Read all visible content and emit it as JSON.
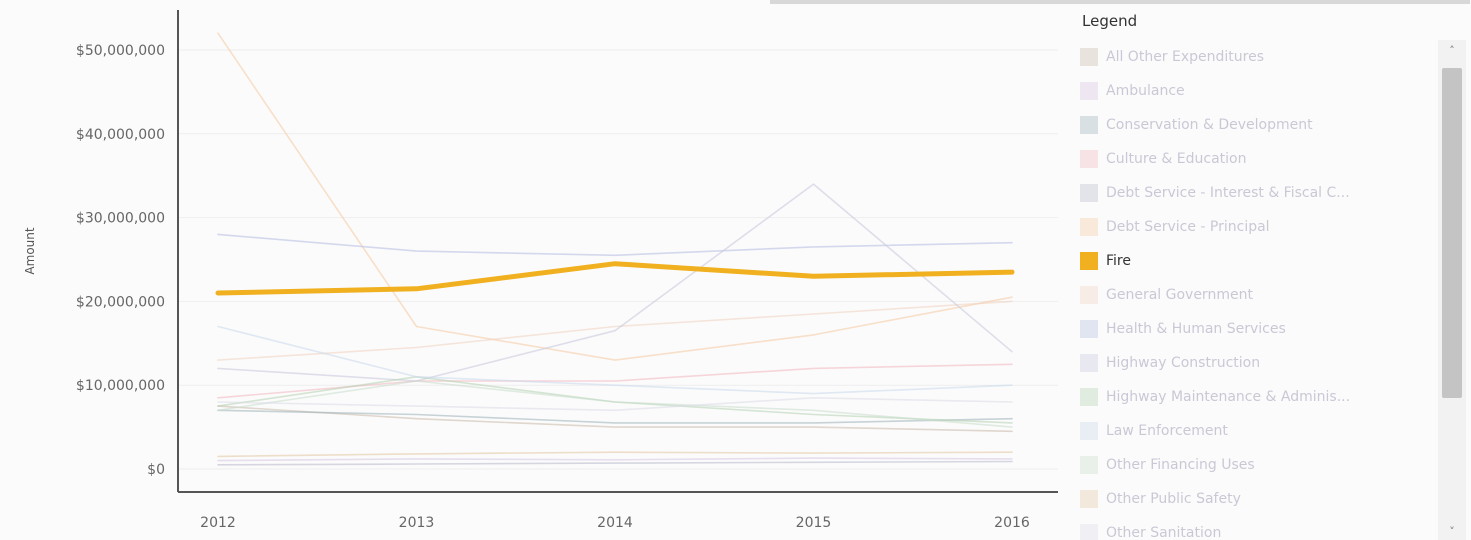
{
  "chart_data": {
    "type": "line",
    "title": "",
    "xlabel": "",
    "ylabel": "Amount",
    "x": [
      "2012",
      "2013",
      "2014",
      "2015",
      "2016"
    ],
    "ylim": [
      0,
      55000000
    ],
    "y_ticks": [
      {
        "value": 0,
        "label": "$0"
      },
      {
        "value": 10000000,
        "label": "$10,000,000"
      },
      {
        "value": 20000000,
        "label": "$20,000,000"
      },
      {
        "value": 30000000,
        "label": "$30,000,000"
      },
      {
        "value": 40000000,
        "label": "$40,000,000"
      },
      {
        "value": 50000000,
        "label": "$50,000,000"
      }
    ],
    "grid": true,
    "legend_title": "Legend",
    "legend_position": "right",
    "highlighted_series": "Fire",
    "series": [
      {
        "name": "All Other Expenditures",
        "color": "#c9b8a8",
        "values": [
          7500000,
          6000000,
          5000000,
          5000000,
          4500000
        ]
      },
      {
        "name": "Ambulance",
        "color": "#d6c4e2",
        "values": [
          1000000,
          1200000,
          1100000,
          1300000,
          1200000
        ]
      },
      {
        "name": "Conservation & Development",
        "color": "#9ab0b8",
        "values": [
          7000000,
          6500000,
          5500000,
          5500000,
          6000000
        ]
      },
      {
        "name": "Culture & Education",
        "color": "#f2b6c0",
        "values": [
          8500000,
          10500000,
          10500000,
          12000000,
          12500000
        ]
      },
      {
        "name": "Debt Service - Interest & Fiscal Charges",
        "color": "#b8b8cc",
        "values": [
          500000,
          600000,
          700000,
          800000,
          900000
        ]
      },
      {
        "name": "Debt Service - Principal",
        "color": "#f5c8a0",
        "values": [
          52000000,
          17000000,
          13000000,
          16000000,
          20500000
        ]
      },
      {
        "name": "Fire",
        "color": "#f0b020",
        "values": [
          21000000,
          21500000,
          24500000,
          23000000,
          23500000
        ]
      },
      {
        "name": "General Government",
        "color": "#f0d2c0",
        "values": [
          13000000,
          14500000,
          17000000,
          18500000,
          20000000
        ]
      },
      {
        "name": "Health & Human Services",
        "color": "#b2bce2",
        "values": [
          28000000,
          26000000,
          25500000,
          26500000,
          27000000
        ]
      },
      {
        "name": "Highway Construction",
        "color": "#c6c6dc",
        "values": [
          12000000,
          10500000,
          16500000,
          34000000,
          14000000
        ]
      },
      {
        "name": "Highway Maintenance & Administration",
        "color": "#b2d2b0",
        "values": [
          7500000,
          11000000,
          8000000,
          6500000,
          5500000
        ]
      },
      {
        "name": "Law Enforcement",
        "color": "#c8d8ec",
        "values": [
          17000000,
          11000000,
          10000000,
          9000000,
          10000000
        ]
      },
      {
        "name": "Other Financing Uses",
        "color": "#c8dccc",
        "values": [
          7000000,
          10500000,
          8000000,
          7000000,
          5000000
        ]
      },
      {
        "name": "Other Public Safety",
        "color": "#e2c6a0",
        "values": [
          1500000,
          1800000,
          2000000,
          1900000,
          2000000
        ]
      },
      {
        "name": "Other Sanitation",
        "color": "#dadae8",
        "values": [
          8000000,
          7500000,
          7000000,
          8500000,
          8000000
        ]
      }
    ],
    "legend_labels": [
      "All Other Expenditures",
      "Ambulance",
      "Conservation & Development",
      "Culture & Education",
      "Debt Service - Interest & Fiscal C...",
      "Debt Service - Principal",
      "Fire",
      "General Government",
      "Health & Human Services",
      "Highway Construction",
      "Highway Maintenance & Adminis...",
      "Law Enforcement",
      "Other Financing Uses",
      "Other Public Safety",
      "Other Sanitation"
    ]
  },
  "icons": {
    "scroll_up": "chevron-up-icon",
    "scroll_down": "chevron-down-icon"
  },
  "scroll_up_glyph": "˄",
  "scroll_down_glyph": "˅"
}
